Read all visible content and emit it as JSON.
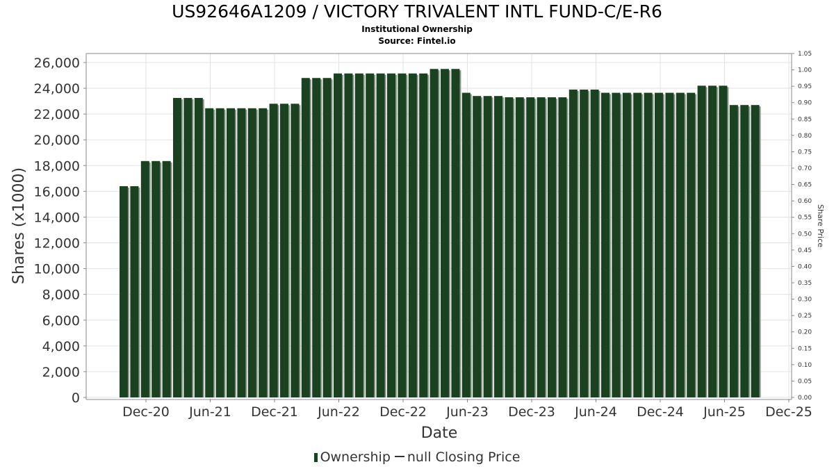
{
  "title": "US92646A1209 / VICTORY TRIVALENT INTL FUND-C/E-R6",
  "subtitle": "Institutional Ownership",
  "source": "Source: Fintel.io",
  "legend": {
    "ownership": "Ownership",
    "price": "null Closing Price"
  },
  "colors": {
    "bar": "#1a4220",
    "bar_shadow": "#8a9a8c",
    "grid": "#e2e2e2",
    "axis": "#888888",
    "text": "#333333"
  },
  "chart_data": {
    "type": "bar",
    "xlabel": "Date",
    "ylabel": "Shares (x1000)",
    "y2label": "Share Price",
    "ylim": [
      0,
      26700
    ],
    "y2lim": [
      0,
      1.05
    ],
    "yticks": [
      0,
      2000,
      4000,
      6000,
      8000,
      10000,
      12000,
      14000,
      16000,
      18000,
      20000,
      22000,
      24000,
      26000
    ],
    "y2ticks": [
      "0.00",
      "0.05",
      "0.10",
      "0.15",
      "0.20",
      "0.25",
      "0.30",
      "0.35",
      "0.40",
      "0.45",
      "0.50",
      "0.55",
      "0.60",
      "0.65",
      "0.70",
      "0.75",
      "0.80",
      "0.85",
      "0.90",
      "0.95",
      "1.00",
      "1.05"
    ],
    "xticks": [
      "Dec-20",
      "Jun-21",
      "Dec-21",
      "Jun-22",
      "Dec-22",
      "Jun-23",
      "Dec-23",
      "Jun-24",
      "Dec-24",
      "Jun-25",
      "Dec-25"
    ],
    "series": [
      {
        "name": "Ownership",
        "values": [
          16400,
          16400,
          18350,
          18350,
          18350,
          23250,
          23250,
          23250,
          22450,
          22450,
          22450,
          22450,
          22450,
          22450,
          22800,
          22800,
          22800,
          24800,
          24800,
          24800,
          25150,
          25150,
          25150,
          25150,
          25150,
          25150,
          25150,
          25150,
          25150,
          25500,
          25500,
          25500,
          23650,
          23400,
          23400,
          23400,
          23300,
          23300,
          23300,
          23300,
          23300,
          23300,
          23900,
          23900,
          23900,
          23650,
          23650,
          23650,
          23650,
          23650,
          23650,
          23650,
          23650,
          23650,
          24200,
          24200,
          24200,
          22700,
          22700,
          22700
        ]
      }
    ]
  }
}
